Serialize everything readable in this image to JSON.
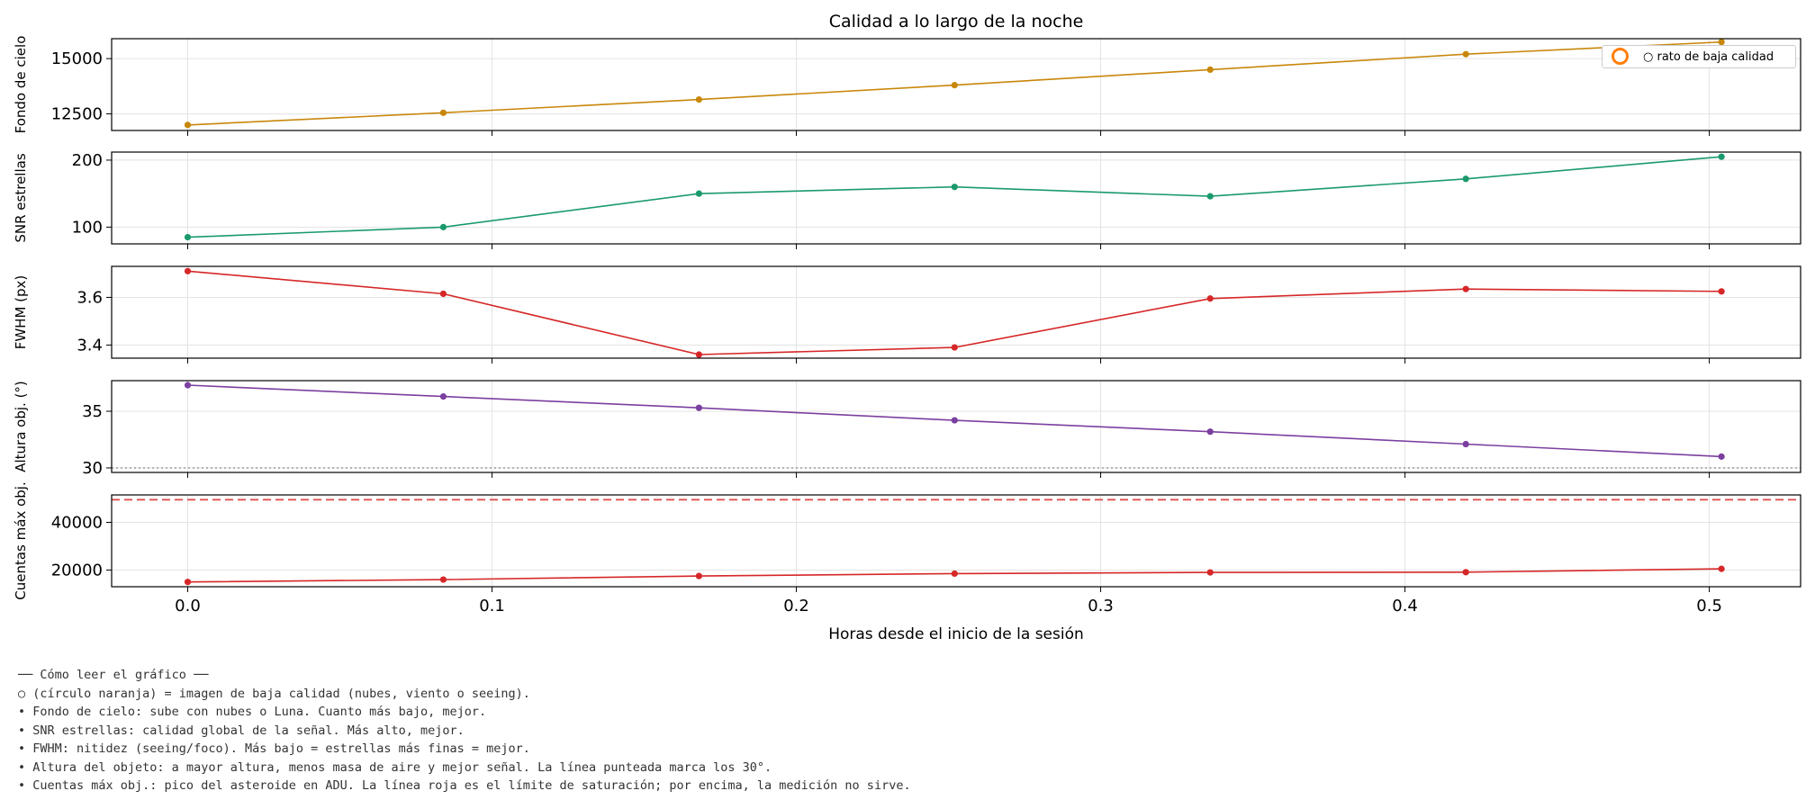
{
  "chart_data": {
    "type": "line",
    "title": "Calidad a lo largo de la noche",
    "xlabel": "Horas desde el inicio de la sesión",
    "x": [
      0.0,
      0.084,
      0.168,
      0.252,
      0.336,
      0.42,
      0.504
    ],
    "xlim": [
      -0.025,
      0.53
    ],
    "xticks": [
      0.0,
      0.1,
      0.2,
      0.3,
      0.4,
      0.5
    ],
    "xtick_labels": [
      "0.0",
      "0.1",
      "0.2",
      "0.3",
      "0.4",
      "0.5"
    ],
    "grid": true,
    "legend": {
      "label": "○ rato de baja calidad",
      "marker_color": "#ff7f0e",
      "placement": "top-right"
    },
    "panels": [
      {
        "ylabel": "Fondo de cielo",
        "color": "#c8870a",
        "values": [
          12000,
          12550,
          13150,
          13800,
          14500,
          15200,
          15750
        ],
        "ylim": [
          11750,
          15900
        ],
        "yticks": [
          12500,
          15000
        ],
        "ytick_labels": [
          "12500",
          "15000"
        ]
      },
      {
        "ylabel": "SNR estrellas",
        "color": "#1a9a6c",
        "values": [
          85,
          100,
          150,
          160,
          146,
          172,
          205
        ],
        "ylim": [
          75,
          212
        ],
        "yticks": [
          100,
          200
        ],
        "ytick_labels": [
          "100",
          "200"
        ]
      },
      {
        "ylabel": "FWHM (px)",
        "color": "#d62728",
        "values": [
          3.71,
          3.615,
          3.36,
          3.39,
          3.595,
          3.635,
          3.625
        ],
        "ylim": [
          3.345,
          3.73
        ],
        "yticks": [
          3.4,
          3.6
        ],
        "ytick_labels": [
          "3.4",
          "3.6"
        ]
      },
      {
        "ylabel": "Altura obj. (°)",
        "color": "#7b3fa0",
        "values": [
          37.3,
          36.3,
          35.3,
          34.2,
          33.2,
          32.1,
          31.0
        ],
        "ylim": [
          29.6,
          37.7
        ],
        "yticks": [
          30,
          35
        ],
        "ytick_labels": [
          "30",
          "35"
        ],
        "hline": {
          "value": 30,
          "color": "#888888",
          "style": "dotted"
        }
      },
      {
        "ylabel": "Cuentas máx obj.",
        "color": "#d62728",
        "values": [
          15000,
          16000,
          17500,
          18500,
          19000,
          19100,
          20500
        ],
        "ylim": [
          13000,
          51500
        ],
        "yticks": [
          20000,
          40000
        ],
        "ytick_labels": [
          "20000",
          "40000"
        ],
        "hline": {
          "value": 49500,
          "color": "#e05050",
          "style": "dashed"
        }
      }
    ]
  },
  "notes": {
    "heading": "── Cómo leer el gráfico ──",
    "lines": [
      "○ (círculo naranja) = imagen de baja calidad (nubes, viento o seeing).",
      "• Fondo de cielo: sube con nubes o Luna. Cuanto más bajo, mejor.",
      "• SNR estrellas: calidad global de la señal. Más alto, mejor.",
      "• FWHM: nitidez (seeing/foco). Más bajo = estrellas más finas = mejor.",
      "• Altura del objeto: a mayor altura, menos masa de aire y mejor señal. La línea punteada marca los 30°.",
      "• Cuentas máx obj.: pico del asteroide en ADU. La línea roja es el límite de saturación; por encima, la medición no sirve."
    ]
  }
}
